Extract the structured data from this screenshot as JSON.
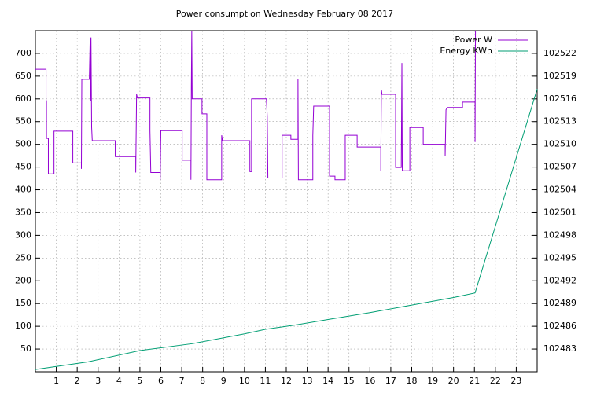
{
  "chart_data": {
    "type": "line",
    "title": "Power consumption Wednesday February 08 2017",
    "xlim": [
      0,
      24
    ],
    "xticks": [
      1,
      2,
      3,
      4,
      5,
      6,
      7,
      8,
      9,
      10,
      11,
      12,
      13,
      14,
      15,
      16,
      17,
      18,
      19,
      20,
      21,
      22,
      23
    ],
    "ylim": [
      0,
      750
    ],
    "yticks": [
      50,
      100,
      150,
      200,
      250,
      300,
      350,
      400,
      450,
      500,
      550,
      600,
      650,
      700
    ],
    "y2lim": [
      102480,
      102525
    ],
    "y2ticks": [
      102483,
      102486,
      102489,
      102492,
      102495,
      102498,
      102501,
      102504,
      102507,
      102510,
      102513,
      102516,
      102519,
      102522
    ],
    "grid": true,
    "legend": "top-right",
    "series": [
      {
        "name": "Power W",
        "color": "#9400d3",
        "x": [
          0,
          0.51,
          0.51,
          0.53,
          0.53,
          0.62,
          0.62,
          0.89,
          0.89,
          1.79,
          1.79,
          2.2,
          2.2,
          2.22,
          2.58,
          2.62,
          2.64,
          2.66,
          2.69,
          2.72,
          3.82,
          3.82,
          4.8,
          4.8,
          4.84,
          4.88,
          5.48,
          5.48,
          5.52,
          5.97,
          5.97,
          6.0,
          7.02,
          7.02,
          7.44,
          7.44,
          7.46,
          7.48,
          7.5,
          7.97,
          7.97,
          8.2,
          8.2,
          8.91,
          8.91,
          8.95,
          10.26,
          10.26,
          10.34,
          10.34,
          11.05,
          11.09,
          11.12,
          11.8,
          11.8,
          12.22,
          12.22,
          12.56,
          12.56,
          12.58,
          13.27,
          13.27,
          13.31,
          14.07,
          14.07,
          14.33,
          14.33,
          14.82,
          14.82,
          15.39,
          15.39,
          16.52,
          16.52,
          16.55,
          16.58,
          17.23,
          17.23,
          17.5,
          17.53,
          17.55,
          17.91,
          17.91,
          18.55,
          18.55,
          19.6,
          19.6,
          19.64,
          19.7,
          20.43,
          20.43,
          21.03,
          21.03,
          21.05
        ],
        "values": [
          665,
          665,
          596,
          596,
          513,
          513,
          435,
          435,
          529,
          529,
          459,
          459,
          446,
          643,
          643,
          735,
          596,
          735,
          538,
          508,
          508,
          473,
          473,
          438,
          610,
          602,
          602,
          530,
          438,
          438,
          422,
          530,
          530,
          465,
          465,
          422,
          631,
          750,
          600,
          600,
          567,
          567,
          422,
          422,
          520,
          508,
          508,
          440,
          440,
          600,
          600,
          562,
          426,
          426,
          520,
          520,
          511,
          511,
          643,
          422,
          422,
          520,
          584,
          584,
          430,
          430,
          422,
          422,
          520,
          520,
          494,
          494,
          442,
          620,
          610,
          610,
          449,
          449,
          679,
          442,
          442,
          537,
          537,
          500,
          500,
          475,
          576,
          581,
          581,
          593,
          593,
          505,
          750
        ]
      },
      {
        "name": "Energy KWh",
        "color": "#009e73",
        "axis": "y2",
        "x": [
          0,
          2.5,
          5,
          7.5,
          10,
          11,
          12.5,
          14,
          16,
          18,
          20,
          21.03,
          24
        ],
        "values": [
          102480.3,
          102481.3,
          102482.8,
          102483.7,
          102485.0,
          102485.6,
          102486.2,
          102486.9,
          102487.8,
          102488.8,
          102489.8,
          102490.4,
          102517.3
        ]
      }
    ]
  }
}
